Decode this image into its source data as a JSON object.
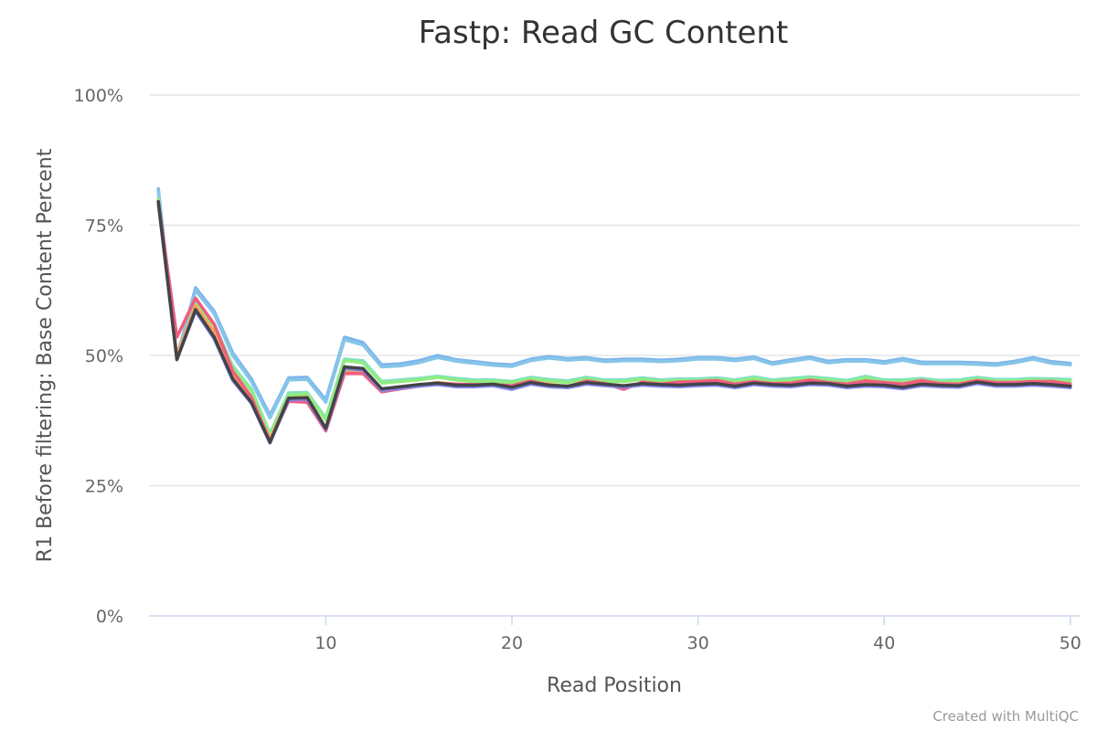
{
  "credit": "Created with MultiQC",
  "chart_data": {
    "type": "line",
    "title": "Fastp: Read GC Content",
    "xlabel": "Read Position",
    "ylabel": "R1 Before filtering: Base Content Percent",
    "xlim": [
      0.5,
      50.5
    ],
    "ylim": [
      0,
      100
    ],
    "x_ticks": [
      10,
      20,
      30,
      40,
      50
    ],
    "y_ticks": [
      {
        "value": 0,
        "label": "0%"
      },
      {
        "value": 25,
        "label": "25%"
      },
      {
        "value": 50,
        "label": "50%"
      },
      {
        "value": 75,
        "label": "75%"
      },
      {
        "value": 100,
        "label": "100%"
      }
    ],
    "grid": true,
    "legend": "none",
    "x": [
      1,
      2,
      3,
      4,
      5,
      6,
      7,
      8,
      9,
      10,
      11,
      12,
      13,
      14,
      15,
      16,
      17,
      18,
      19,
      20,
      21,
      22,
      23,
      24,
      25,
      26,
      27,
      28,
      29,
      30,
      31,
      32,
      33,
      34,
      35,
      36,
      37,
      38,
      39,
      40,
      41,
      42,
      43,
      44,
      45,
      46,
      47,
      48,
      49,
      50
    ],
    "series": [
      {
        "color": "#7cb5ec",
        "values": [
          82,
          49.5,
          63,
          58.5,
          50.5,
          45.5,
          38.5,
          45.7,
          45.8,
          41.5,
          53.5,
          52.5,
          48.2,
          48.4,
          49,
          50,
          49.2,
          48.8,
          48.4,
          48.2,
          49.3,
          49.8,
          49.4,
          49.6,
          49.1,
          49.3,
          49.3,
          49.1,
          49.3,
          49.6,
          49.6,
          49.3,
          49.7,
          48.6,
          49.2,
          49.7,
          48.9,
          49.2,
          49.2,
          48.8,
          49.4,
          48.7,
          48.7,
          48.7,
          48.6,
          48.4,
          48.9,
          49.6,
          48.8,
          48.5
        ]
      },
      {
        "color": "#86c5e8",
        "values": [
          81.5,
          49.8,
          62.5,
          58,
          50,
          45,
          38,
          45.3,
          45.4,
          41,
          53,
          52,
          47.8,
          48,
          48.6,
          49.6,
          48.9,
          48.5,
          48.1,
          47.9,
          49,
          49.5,
          49.1,
          49.3,
          48.8,
          49,
          49,
          48.8,
          49,
          49.3,
          49.3,
          49,
          49.4,
          48.3,
          48.9,
          49.4,
          48.6,
          48.9,
          48.9,
          48.5,
          49.1,
          48.4,
          48.4,
          48.4,
          48.3,
          48.1,
          48.6,
          49.3,
          48.5,
          48.2
        ]
      },
      {
        "color": "#7fe0c8",
        "values": [
          80,
          49.5,
          60,
          56,
          48,
          43.5,
          35,
          42.8,
          42.9,
          38,
          49.3,
          49,
          45,
          45.3,
          45.6,
          46,
          45.6,
          45.3,
          45.3,
          45,
          45.8,
          45.4,
          45.1,
          45.8,
          45.3,
          45.3,
          45.7,
          45.3,
          45.5,
          45.5,
          45.7,
          45.3,
          45.9,
          45.3,
          45.6,
          45.9,
          45.6,
          45.2,
          46,
          45.3,
          45.3,
          45.6,
          45.2,
          45.3,
          45.8,
          45.4,
          45.4,
          45.6,
          45.5,
          45.4
        ]
      },
      {
        "color": "#90ed7d",
        "values": [
          80,
          49.6,
          59.8,
          55.7,
          47.7,
          43.2,
          34.7,
          42.4,
          42.6,
          37.6,
          49,
          48.6,
          44.7,
          45,
          45.3,
          45.8,
          45.3,
          45,
          45,
          44.8,
          45.5,
          45.1,
          44.8,
          45.5,
          45,
          45,
          45.4,
          45,
          45.2,
          45.2,
          45.4,
          45,
          45.6,
          45,
          45.3,
          45.6,
          45.3,
          44.9,
          45.7,
          45,
          45,
          45.3,
          44.9,
          45,
          45.5,
          45.1,
          45.1,
          45.3,
          45.2,
          45.1
        ]
      },
      {
        "color": "#f7a35c",
        "values": [
          79,
          50,
          59.5,
          54.5,
          46.5,
          41.5,
          34,
          41.8,
          42,
          36,
          46.8,
          47,
          43.5,
          44,
          44.3,
          44.8,
          44.5,
          44.3,
          44.4,
          44.1,
          44.8,
          44.5,
          44,
          45,
          44.6,
          44,
          44.6,
          44.3,
          44.6,
          44.6,
          44.8,
          44.3,
          44.8,
          44.4,
          44.4,
          44.9,
          44.4,
          44.2,
          44.7,
          44.3,
          44.1,
          44.8,
          44.3,
          44.3,
          45,
          44.5,
          44.5,
          44.6,
          44.6,
          44.1
        ]
      },
      {
        "color": "#f15c80",
        "values": [
          79.5,
          53.5,
          61,
          56,
          47,
          42,
          33.5,
          41.2,
          41,
          35.5,
          46.5,
          46.5,
          43,
          43.6,
          44.1,
          44.6,
          44.5,
          44.4,
          44.4,
          44.2,
          45.1,
          44.3,
          44,
          45.1,
          44.6,
          43.5,
          44.9,
          44.5,
          44.9,
          45,
          45.2,
          44.5,
          45,
          44.6,
          44.7,
          45.3,
          44.8,
          44.5,
          45.1,
          44.8,
          44.5,
          45.2,
          44.6,
          44.5,
          45.2,
          44.8,
          44.8,
          45,
          45,
          44.5
        ]
      },
      {
        "color": "#8085e9",
        "values": [
          79.5,
          49.3,
          58.5,
          53.2,
          45.2,
          40.8,
          33.2,
          41.5,
          41.6,
          35.8,
          47.5,
          47.2,
          43.3,
          43.7,
          44.1,
          44.4,
          44,
          44,
          44.2,
          43.5,
          44.5,
          44,
          43.8,
          44.5,
          44.2,
          43.9,
          44.3,
          44.1,
          44,
          44.2,
          44.3,
          43.8,
          44.4,
          44.1,
          44,
          44.4,
          44.3,
          43.8,
          44.1,
          44,
          43.6,
          44.2,
          44,
          43.9,
          44.6,
          44.1,
          44.1,
          44.3,
          44.1,
          43.8
        ]
      },
      {
        "color": "#434348",
        "values": [
          79.5,
          49.2,
          58.8,
          53.5,
          45.5,
          41,
          33.3,
          41.8,
          41.9,
          36,
          47.8,
          47.5,
          43.6,
          44,
          44.4,
          44.7,
          44.3,
          44.3,
          44.5,
          43.9,
          44.8,
          44.3,
          44.1,
          44.8,
          44.5,
          44.2,
          44.6,
          44.4,
          44.3,
          44.5,
          44.6,
          44.1,
          44.7,
          44.4,
          44.3,
          44.7,
          44.6,
          44.1,
          44.4,
          44.3,
          43.9,
          44.5,
          44.3,
          44.2,
          44.9,
          44.4,
          44.4,
          44.6,
          44.4,
          44.1
        ]
      }
    ]
  }
}
